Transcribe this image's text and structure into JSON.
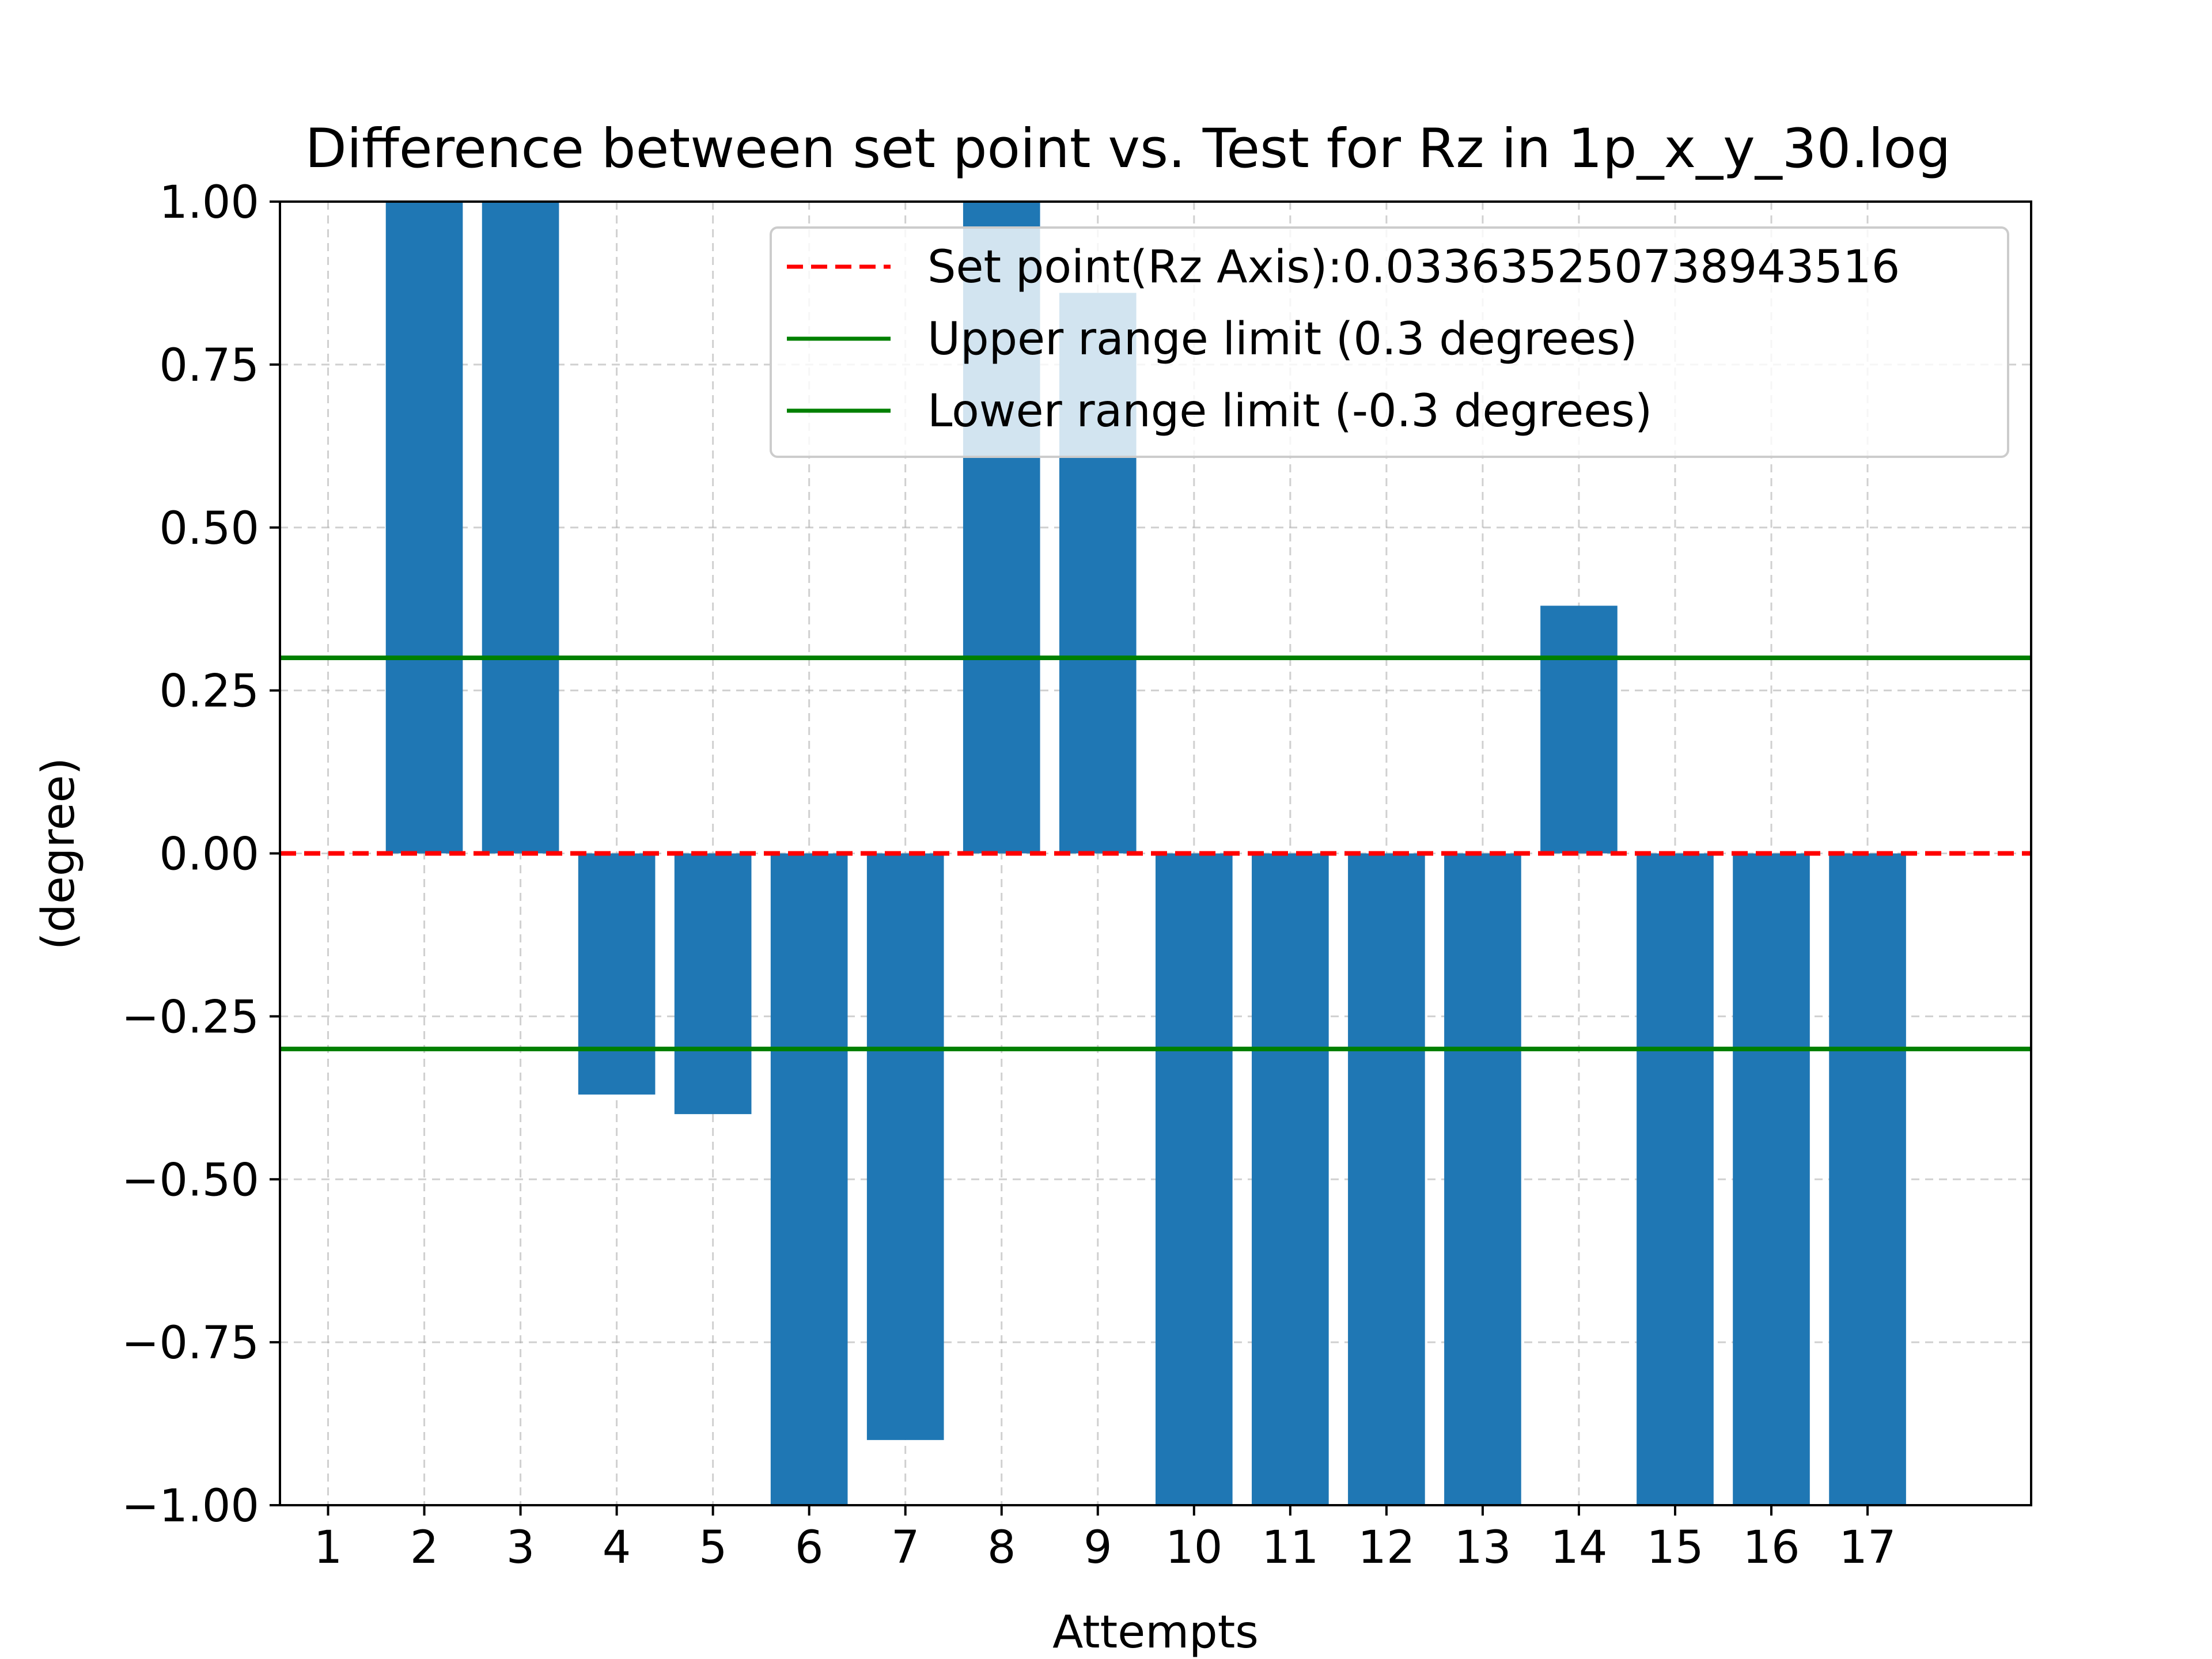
{
  "chart_data": {
    "type": "bar",
    "title": "Difference between set point vs. Test for Rz in 1p_x_y_30.log",
    "xlabel": "Attempts",
    "ylabel": "(degree)",
    "categories": [
      "1",
      "2",
      "3",
      "4",
      "5",
      "6",
      "7",
      "8",
      "9",
      "10",
      "11",
      "12",
      "13",
      "14",
      "15",
      "16",
      "17"
    ],
    "values": [
      0.0,
      1.0,
      1.0,
      -0.37,
      -0.4,
      -1.0,
      -0.9,
      1.0,
      0.86,
      -1.0,
      -1.0,
      -1.0,
      -1.0,
      0.38,
      -1.0,
      -1.0,
      -1.0
    ],
    "ylim": [
      -1.0,
      1.0
    ],
    "xlim": [
      -0.5,
      17.7
    ],
    "yticks": [
      "−1.00",
      "−0.75",
      "−0.50",
      "−0.25",
      "0.00",
      "0.25",
      "0.50",
      "0.75",
      "1.00"
    ],
    "ytick_values": [
      -1.0,
      -0.75,
      -0.5,
      -0.25,
      0.0,
      0.25,
      0.5,
      0.75,
      1.0
    ],
    "grid": true,
    "legend_position": "top-right",
    "bar_color": "#1f77b4",
    "reference_lines": [
      {
        "label": "Set point(Rz Axis):0.03363525073894351​6",
        "value": 0.0,
        "color": "#ff0000",
        "style": "dashed"
      },
      {
        "label": "Upper range limit (0.3 degrees)",
        "value": 0.3,
        "color": "#008000",
        "style": "solid"
      },
      {
        "label": "Lower range limit (-0.3 degrees)",
        "value": -0.3,
        "color": "#008000",
        "style": "solid"
      }
    ]
  }
}
